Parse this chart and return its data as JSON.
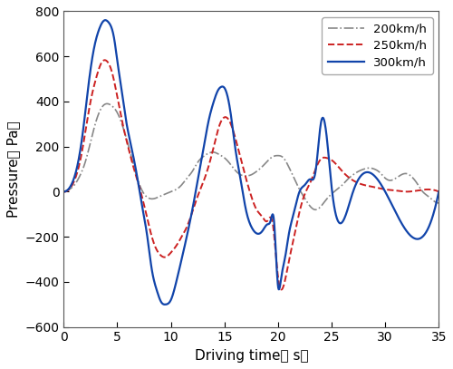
{
  "title": "",
  "xlabel": "Driving time（ s）",
  "ylabel": "Pressure（ Pa）",
  "xlim": [
    0,
    35
  ],
  "ylim": [
    -600,
    800
  ],
  "yticks": [
    -600,
    -400,
    -200,
    0,
    200,
    400,
    600,
    800
  ],
  "xticks": [
    0,
    5,
    10,
    15,
    20,
    25,
    30,
    35
  ],
  "legend": [
    "200km/h",
    "250km/h",
    "300km/h"
  ],
  "line_200_x": [
    0,
    0.5,
    1.0,
    1.5,
    2.0,
    2.5,
    3.0,
    3.5,
    4.0,
    4.5,
    5.0,
    5.5,
    6.0,
    6.5,
    7.0,
    7.5,
    8.0,
    8.5,
    9.0,
    9.5,
    10.0,
    10.5,
    11.0,
    11.5,
    12.0,
    12.5,
    13.0,
    13.5,
    14.0,
    14.5,
    15.0,
    15.5,
    16.0,
    16.5,
    17.0,
    17.5,
    18.0,
    18.5,
    19.0,
    19.5,
    20.0,
    20.5,
    21.0,
    21.5,
    22.0,
    22.5,
    23.0,
    23.5,
    24.0,
    24.5,
    25.0,
    25.5,
    26.0,
    26.5,
    27.0,
    27.5,
    28.0,
    28.5,
    29.0,
    29.5,
    30.0,
    30.5,
    31.0,
    31.5,
    32.0,
    32.5,
    33.0,
    33.5,
    34.0,
    34.5,
    35.0
  ],
  "line_200_y": [
    0,
    10,
    30,
    70,
    130,
    220,
    310,
    370,
    390,
    380,
    350,
    290,
    210,
    120,
    40,
    -10,
    -30,
    -30,
    -20,
    -10,
    0,
    10,
    30,
    60,
    90,
    130,
    155,
    170,
    175,
    165,
    150,
    125,
    95,
    75,
    70,
    75,
    90,
    110,
    135,
    155,
    160,
    150,
    110,
    60,
    10,
    -30,
    -65,
    -80,
    -65,
    -35,
    -10,
    10,
    30,
    55,
    75,
    90,
    100,
    105,
    100,
    85,
    60,
    50,
    60,
    75,
    80,
    65,
    35,
    0,
    -20,
    -40,
    -50
  ],
  "line_250_x": [
    0,
    0.5,
    1.0,
    1.5,
    2.0,
    2.5,
    3.0,
    3.5,
    4.0,
    4.5,
    5.0,
    5.5,
    6.0,
    6.5,
    7.0,
    7.5,
    8.0,
    8.5,
    9.0,
    9.5,
    10.0,
    10.5,
    11.0,
    11.5,
    12.0,
    12.5,
    13.0,
    13.5,
    14.0,
    14.5,
    15.0,
    15.5,
    16.0,
    16.5,
    17.0,
    17.5,
    18.0,
    18.5,
    19.0,
    19.5,
    20.0,
    20.5,
    21.0,
    21.5,
    22.0,
    22.5,
    23.0,
    23.5,
    24.0,
    24.5,
    25.0,
    26.0,
    27.0,
    28.0,
    29.0,
    30.0,
    31.0,
    32.0,
    33.0,
    34.0,
    35.0
  ],
  "line_250_y": [
    0,
    10,
    50,
    130,
    260,
    400,
    500,
    570,
    580,
    530,
    420,
    300,
    200,
    110,
    30,
    -60,
    -160,
    -240,
    -280,
    -290,
    -270,
    -240,
    -200,
    -155,
    -90,
    -20,
    40,
    110,
    200,
    290,
    330,
    310,
    240,
    150,
    60,
    -20,
    -80,
    -110,
    -130,
    -140,
    -380,
    -420,
    -310,
    -200,
    -90,
    -10,
    40,
    100,
    145,
    150,
    140,
    90,
    50,
    30,
    20,
    10,
    5,
    0,
    5,
    10,
    0
  ],
  "line_300_x": [
    0,
    0.3,
    0.7,
    1.2,
    1.8,
    2.3,
    2.8,
    3.3,
    3.8,
    4.2,
    4.7,
    5.0,
    5.4,
    5.8,
    6.3,
    6.8,
    7.3,
    7.8,
    8.2,
    8.7,
    9.1,
    9.5,
    10.0,
    10.5,
    11.0,
    11.5,
    12.0,
    12.5,
    13.0,
    13.5,
    14.0,
    14.4,
    14.7,
    15.0,
    15.3,
    15.6,
    16.0,
    16.5,
    17.0,
    17.5,
    18.0,
    18.3,
    18.6,
    19.0,
    19.3,
    19.6,
    20.0,
    20.3,
    20.7,
    21.0,
    21.5,
    22.0,
    22.5,
    23.0,
    23.5,
    24.0,
    24.5,
    25.0,
    27.0,
    30.0,
    35.0
  ],
  "line_300_y": [
    0,
    5,
    30,
    100,
    270,
    470,
    630,
    720,
    760,
    750,
    680,
    580,
    450,
    320,
    200,
    80,
    -60,
    -200,
    -340,
    -440,
    -490,
    -500,
    -480,
    -400,
    -300,
    -195,
    -80,
    50,
    180,
    310,
    400,
    450,
    465,
    460,
    420,
    340,
    195,
    55,
    -80,
    -155,
    -185,
    -185,
    -170,
    -145,
    -130,
    -120,
    -420,
    -380,
    -280,
    -190,
    -90,
    0,
    30,
    55,
    90,
    305,
    260,
    20,
    0,
    0,
    0
  ],
  "color_200": "#888888",
  "color_250": "#cc2222",
  "color_300": "#1144aa",
  "linestyle_200": "-.",
  "linestyle_250": "--",
  "linestyle_300": "-",
  "linewidth_200": 1.2,
  "linewidth_250": 1.4,
  "linewidth_300": 1.6,
  "tick_direction": "in",
  "spine_color": "#555555"
}
